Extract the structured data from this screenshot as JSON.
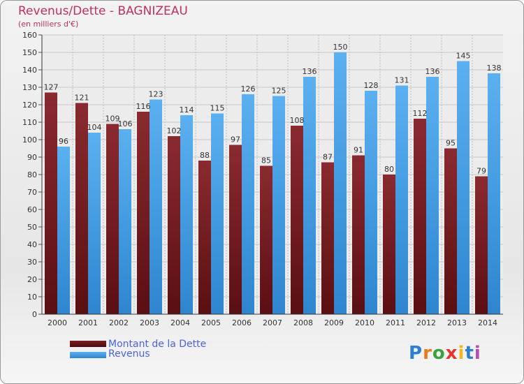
{
  "chart_data": {
    "type": "bar",
    "title": "Revenus/Dette - BAGNIZEAU",
    "subtitle": "(en milliers d'€)",
    "categories": [
      "2000",
      "2001",
      "2002",
      "2003",
      "2004",
      "2005",
      "2006",
      "2007",
      "2008",
      "2009",
      "2010",
      "2011",
      "2012",
      "2013",
      "2014"
    ],
    "series": [
      {
        "name": "Montant de la Dette",
        "color": "#7a1e22",
        "values": [
          127,
          121,
          109,
          116,
          102,
          88,
          97,
          85,
          108,
          87,
          91,
          80,
          112,
          95,
          79
        ]
      },
      {
        "name": "Revenus",
        "color": "#4ea3e6",
        "values": [
          96,
          104,
          106,
          123,
          114,
          115,
          126,
          125,
          136,
          150,
          128,
          131,
          136,
          145,
          138
        ]
      }
    ],
    "ylim": [
      0,
      160
    ],
    "ytick_step": 10,
    "grid": true,
    "legend_position": "bottom-left"
  },
  "logo": {
    "text": "Proxiti",
    "letters": [
      "P",
      "r",
      "o",
      "x",
      "i",
      "t",
      "i"
    ],
    "colors": [
      "#2e7fd0",
      "#e87a1c",
      "#3ba23f",
      "#e5342b",
      "#f2b51b",
      "#2e7fd0",
      "#b84bb0"
    ]
  }
}
